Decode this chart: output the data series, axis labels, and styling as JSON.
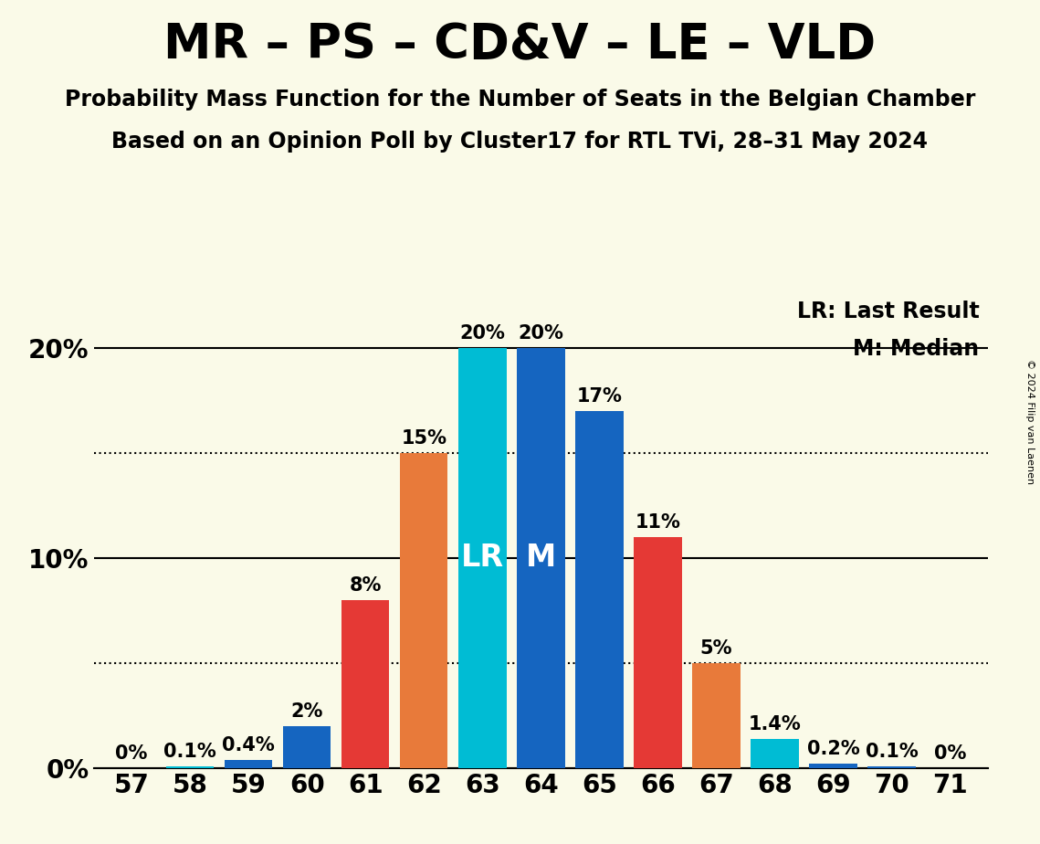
{
  "title": "MR – PS – CD&V – LE – VLD",
  "subtitle1": "Probability Mass Function for the Number of Seats in the Belgian Chamber",
  "subtitle2": "Based on an Opinion Poll by Cluster17 for RTL TVi, 28–31 May 2024",
  "copyright": "© 2024 Filip van Laenen",
  "seats": [
    57,
    58,
    59,
    60,
    61,
    62,
    63,
    64,
    65,
    66,
    67,
    68,
    69,
    70,
    71
  ],
  "values": [
    0.0,
    0.1,
    0.4,
    2.0,
    8.0,
    15.0,
    20.0,
    20.0,
    17.0,
    11.0,
    5.0,
    1.4,
    0.2,
    0.1,
    0.0
  ],
  "labels": [
    "0%",
    "0.1%",
    "0.4%",
    "2%",
    "8%",
    "15%",
    "20%",
    "20%",
    "17%",
    "11%",
    "5%",
    "1.4%",
    "0.2%",
    "0.1%",
    "0%"
  ],
  "colors": [
    "#1565C0",
    "#00BCD4",
    "#1565C0",
    "#1565C0",
    "#E53935",
    "#E87A3A",
    "#00BCD4",
    "#1565C0",
    "#1565C0",
    "#E53935",
    "#E87A3A",
    "#00BCD4",
    "#1565C0",
    "#1565C0",
    "#1565C0"
  ],
  "lr_seat": 63,
  "median_seat": 64,
  "lr_label": "LR",
  "median_label": "M",
  "lr_legend": "LR: Last Result",
  "median_legend": "M: Median",
  "yticks": [
    0,
    10,
    20
  ],
  "ylim": [
    0,
    22.5
  ],
  "background_color": "#FAFAE8",
  "dotted_lines": [
    5,
    15
  ],
  "title_fontsize": 38,
  "subtitle_fontsize": 17,
  "bar_label_fontsize": 15,
  "legend_fontsize": 17,
  "inbar_fontsize": 24,
  "tick_fontsize": 20
}
